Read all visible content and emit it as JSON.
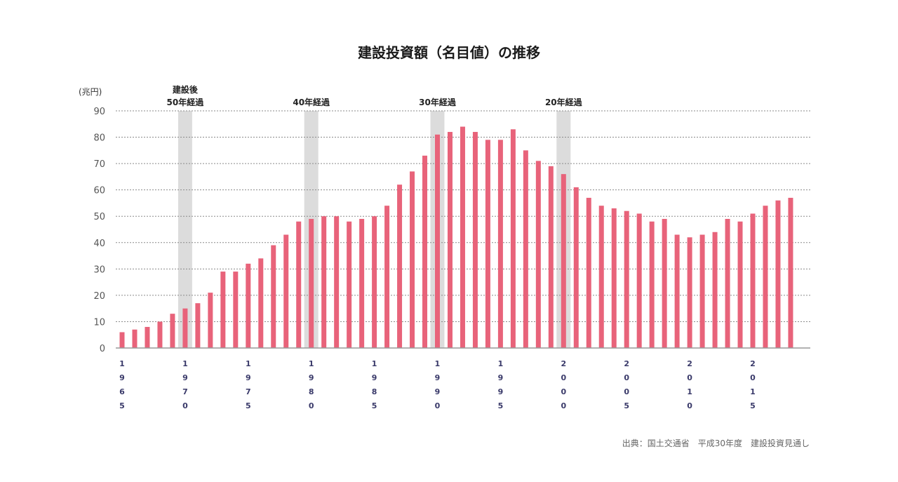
{
  "chart_data": {
    "type": "bar",
    "title": "建設投資額（名目値）の推移",
    "ylabel": "(兆円)",
    "xlabel": "",
    "ylim": [
      0,
      90
    ],
    "yticks": [
      0,
      10,
      20,
      30,
      40,
      50,
      60,
      70,
      80,
      90
    ],
    "grid": true,
    "categories": [
      1965,
      1966,
      1967,
      1968,
      1969,
      1970,
      1971,
      1972,
      1973,
      1974,
      1975,
      1976,
      1977,
      1978,
      1979,
      1980,
      1981,
      1982,
      1983,
      1984,
      1985,
      1986,
      1987,
      1988,
      1989,
      1990,
      1991,
      1992,
      1993,
      1994,
      1995,
      1996,
      1997,
      1998,
      1999,
      2000,
      2001,
      2002,
      2003,
      2004,
      2005,
      2006,
      2007,
      2008,
      2009,
      2010,
      2011,
      2012,
      2013,
      2014,
      2015,
      2016,
      2017,
      2018
    ],
    "values": [
      6,
      7,
      8,
      10,
      13,
      15,
      17,
      21,
      29,
      29,
      32,
      34,
      39,
      43,
      48,
      49,
      50,
      50,
      48,
      49,
      50,
      54,
      62,
      67,
      73,
      81,
      82,
      84,
      82,
      79,
      79,
      83,
      75,
      71,
      69,
      66,
      61,
      57,
      54,
      53,
      52,
      51,
      48,
      49,
      43,
      42,
      43,
      44,
      49,
      48,
      51,
      54,
      56,
      57
    ],
    "xtick_labels": [
      "1965",
      "1970",
      "1975",
      "1980",
      "1985",
      "1990",
      "1995",
      "2000",
      "2005",
      "2010",
      "2015"
    ],
    "annotations": [
      {
        "year": 1970,
        "lines": [
          "建設後",
          "50年経過"
        ]
      },
      {
        "year": 1980,
        "lines": [
          "40年経過"
        ]
      },
      {
        "year": 1990,
        "lines": [
          "30年経過"
        ]
      },
      {
        "year": 2000,
        "lines": [
          "20年経過"
        ]
      }
    ],
    "source": "出典：国土交通省　平成30年度　建設投資見通し",
    "colors": {
      "bar": "#e8637a",
      "band": "#dcdcdc"
    }
  }
}
